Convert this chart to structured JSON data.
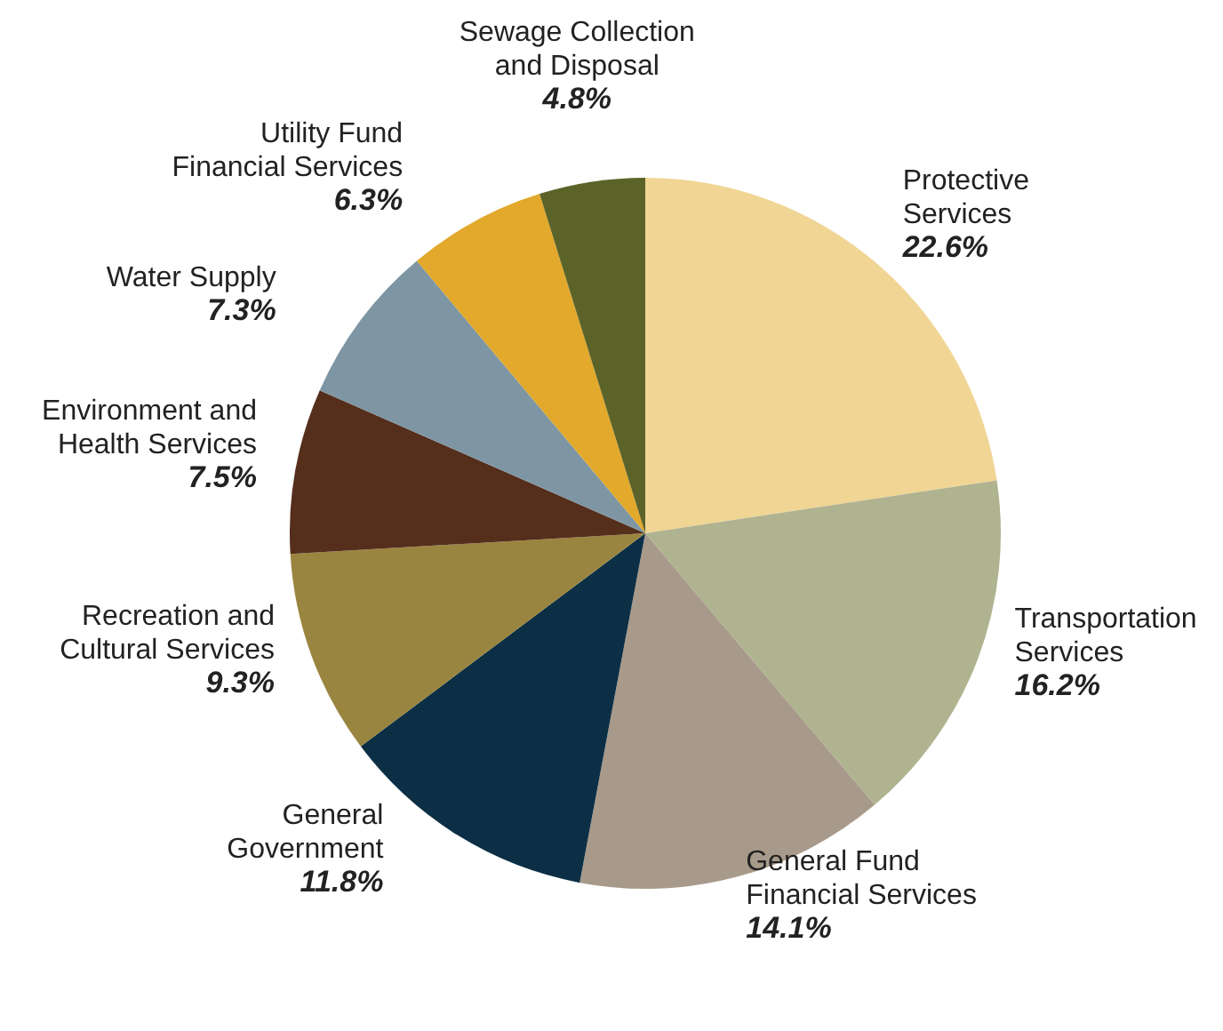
{
  "chart_data": {
    "type": "pie",
    "categories": [
      "Protective\nServices",
      "Transportation\nServices",
      "General Fund\nFinancial Services",
      "General\nGovernment",
      "Recreation and\nCultural Services",
      "Environment and\nHealth Services",
      "Water Supply",
      "Utility Fund\nFinancial Services",
      "Sewage Collection\nand Disposal"
    ],
    "values": [
      22.6,
      16.2,
      14.1,
      11.8,
      9.3,
      7.5,
      7.3,
      6.3,
      4.8
    ],
    "value_labels": [
      "22.6%",
      "16.2%",
      "14.1%",
      "11.8%",
      "9.3%",
      "7.5%",
      "7.3%",
      "6.3%",
      "4.8%"
    ],
    "colors": [
      "#f0d595",
      "#b0b38f",
      "#a89a8a",
      "#0c2f45",
      "#9a8540",
      "#552e1c",
      "#7e96a3",
      "#e2a92c",
      "#5c6328"
    ]
  }
}
